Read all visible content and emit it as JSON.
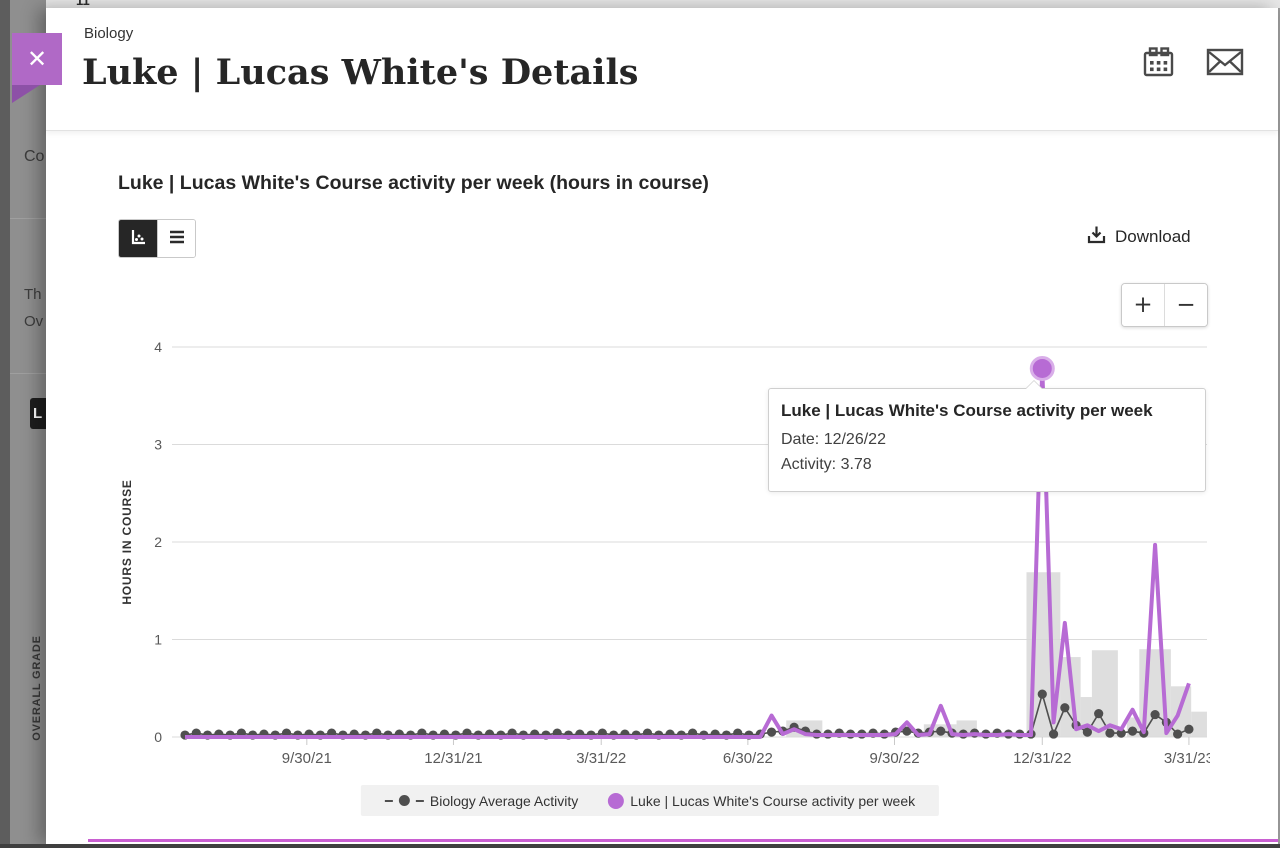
{
  "overlay": {
    "top_fragment": "11",
    "left_fragments": {
      "line1": "Co",
      "line2": "Th",
      "line3": "Ov",
      "avatar_initial": "L",
      "vertical_label": "OVERALL GRADE"
    }
  },
  "header": {
    "course": "Biology",
    "title": "Luke | Lucas White's Details",
    "close_glyph": "✕"
  },
  "chart_card": {
    "title": "Luke | Lucas White's Course activity per week (hours in course)",
    "download_label": "Download",
    "zoom_in_glyph": "+",
    "zoom_out_glyph": "−"
  },
  "tooltip": {
    "title": "Luke | Lucas White's Course activity per week",
    "date": "Date: 12/26/22",
    "activity": "Activity: 3.78"
  },
  "colors": {
    "accent_purple": "#b76bd4",
    "ribbon_purple": "#b069c6",
    "avg_gray": "#4f4f4f",
    "bar_gray": "#d8d8d8",
    "grid_gray": "#dbdbdb"
  },
  "chart_data": {
    "type": "line",
    "title": "Luke | Lucas White's Course activity per week (hours in course)",
    "ylabel": "HOURS IN COURSE",
    "ylim": [
      0,
      4
    ],
    "y_ticks": [
      0,
      1,
      2,
      3,
      4
    ],
    "x_unit": "week",
    "x_start_date": "7/12/21",
    "x_ticks": [
      {
        "label": "9/30/21",
        "week": 10.8
      },
      {
        "label": "12/31/21",
        "week": 23.8
      },
      {
        "label": "3/31/22",
        "week": 36.9
      },
      {
        "label": "6/30/22",
        "week": 49.9
      },
      {
        "label": "9/30/22",
        "week": 62.9
      },
      {
        "label": "12/31/22",
        "week": 76
      },
      {
        "label": "3/31/23",
        "week": 89
      }
    ],
    "series": [
      {
        "name": "Biology Average Activity",
        "color": "#4f4f4f",
        "values": [
          0.02,
          0.04,
          0.02,
          0.03,
          0.02,
          0.04,
          0.02,
          0.03,
          0.02,
          0.04,
          0.02,
          0.03,
          0.02,
          0.04,
          0.02,
          0.03,
          0.02,
          0.04,
          0.02,
          0.03,
          0.02,
          0.04,
          0.02,
          0.03,
          0.02,
          0.04,
          0.02,
          0.03,
          0.02,
          0.04,
          0.02,
          0.03,
          0.02,
          0.04,
          0.02,
          0.03,
          0.02,
          0.04,
          0.02,
          0.03,
          0.02,
          0.04,
          0.02,
          0.03,
          0.02,
          0.04,
          0.02,
          0.03,
          0.02,
          0.04,
          0.02,
          0.03,
          0.05,
          0.06,
          0.1,
          0.06,
          0.03,
          0.03,
          0.04,
          0.03,
          0.03,
          0.04,
          0.03,
          0.05,
          0.06,
          0.04,
          0.05,
          0.06,
          0.04,
          0.03,
          0.04,
          0.03,
          0.04,
          0.03,
          0.03,
          0.03,
          0.44,
          0.03,
          0.3,
          0.12,
          0.05,
          0.24,
          0.04,
          0.04,
          0.06,
          0.04,
          0.23,
          0.15,
          0.03,
          0.08
        ]
      },
      {
        "name": "Luke | Lucas White's Course activity per week",
        "color": "#b76bd4",
        "values": [
          0,
          0,
          0,
          0,
          0,
          0,
          0,
          0,
          0,
          0,
          0,
          0,
          0,
          0,
          0,
          0,
          0,
          0,
          0,
          0,
          0,
          0,
          0,
          0,
          0,
          0,
          0,
          0,
          0,
          0,
          0,
          0,
          0,
          0,
          0,
          0,
          0,
          0,
          0,
          0,
          0,
          0,
          0,
          0,
          0,
          0,
          0,
          0,
          0,
          0,
          0,
          0,
          0.22,
          0.03,
          0.08,
          0.03,
          0.02,
          0.02,
          0.02,
          0.02,
          0.02,
          0.02,
          0.02,
          0.03,
          0.15,
          0.02,
          0.03,
          0.32,
          0.03,
          0.02,
          0.03,
          0.02,
          0.02,
          0.03,
          0.02,
          0.02,
          3.78,
          0.15,
          1.17,
          0.08,
          0.12,
          0.06,
          0.12,
          0.08,
          0.28,
          0.05,
          1.97,
          0.04,
          0.22,
          0.55
        ]
      }
    ],
    "bars": [
      {
        "from": 53.3,
        "to": 56.5,
        "value": 0.17
      },
      {
        "from": 65.5,
        "to": 68.4,
        "value": 0.13
      },
      {
        "from": 68.4,
        "to": 70.2,
        "value": 0.17
      },
      {
        "from": 74.6,
        "to": 77.6,
        "value": 1.69
      },
      {
        "from": 77.6,
        "to": 79.4,
        "value": 0.82
      },
      {
        "from": 79.4,
        "to": 80.4,
        "value": 0.41
      },
      {
        "from": 80.4,
        "to": 82.7,
        "value": 0.89
      },
      {
        "from": 83.5,
        "to": 84.6,
        "value": 0.2
      },
      {
        "from": 84.6,
        "to": 87.4,
        "value": 0.9
      },
      {
        "from": 87.4,
        "to": 89.2,
        "value": 0.52
      },
      {
        "from": 89.2,
        "to": 90.6,
        "value": 0.26
      }
    ],
    "highlight": {
      "series": 1,
      "week_index": 76,
      "date": "12/26/22",
      "value": 3.78
    },
    "legend_position": "bottom",
    "grid": true
  }
}
